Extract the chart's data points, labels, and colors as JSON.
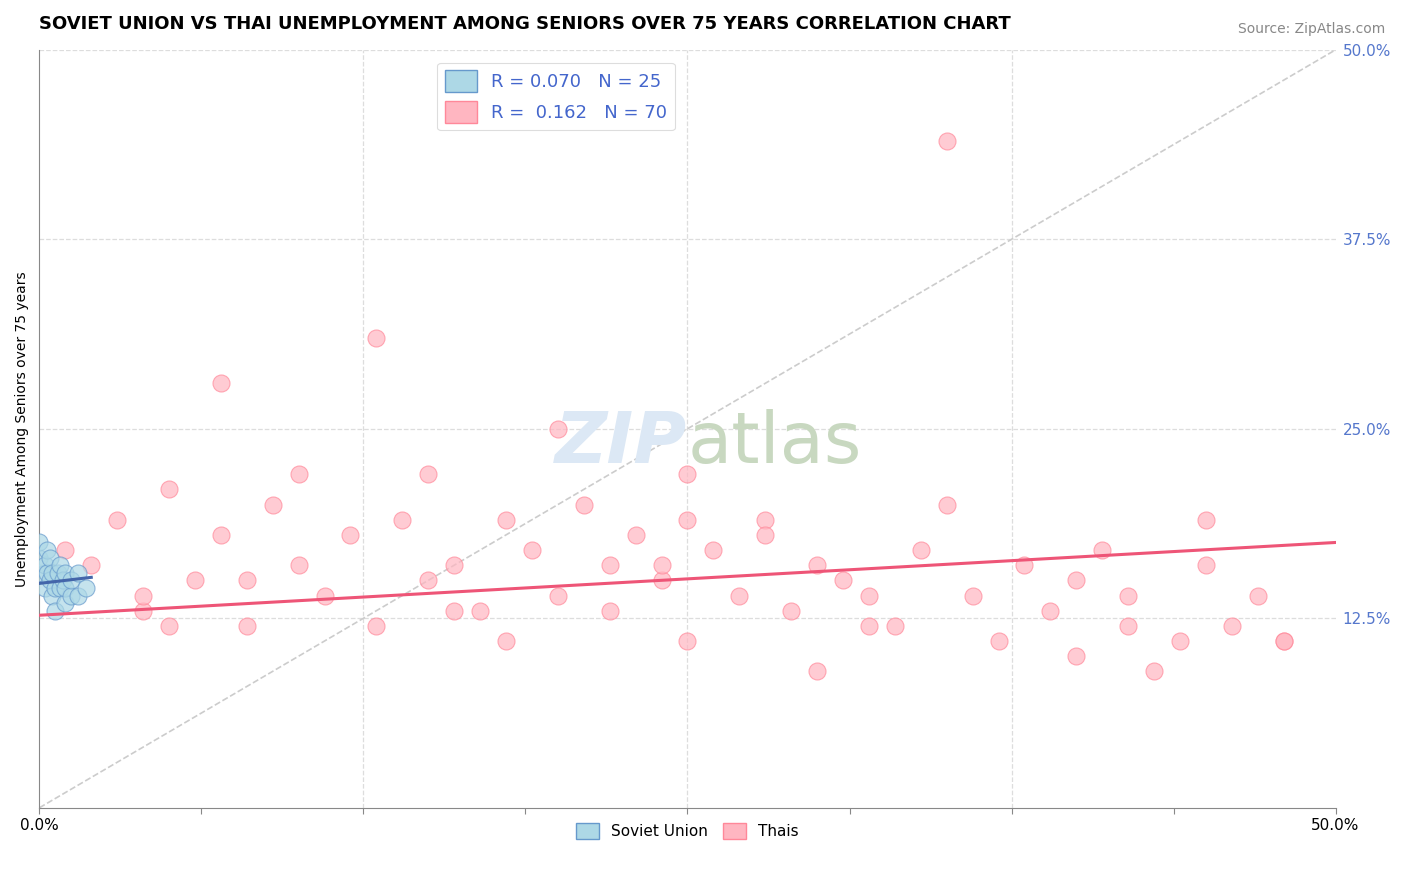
{
  "title": "SOVIET UNION VS THAI UNEMPLOYMENT AMONG SENIORS OVER 75 YEARS CORRELATION CHART",
  "source": "Source: ZipAtlas.com",
  "ylabel": "Unemployment Among Seniors over 75 years",
  "xlim": [
    0.0,
    0.5
  ],
  "ylim": [
    0.0,
    0.5
  ],
  "xticks": [
    0.0,
    0.0625,
    0.125,
    0.1875,
    0.25,
    0.3125,
    0.375,
    0.4375,
    0.5
  ],
  "yticks": [
    0.0,
    0.125,
    0.25,
    0.375,
    0.5
  ],
  "xticklabels_outer": [
    "0.0%",
    "",
    "",
    "",
    "",
    "",
    "",
    "",
    "50.0%"
  ],
  "yticklabels_right": [
    "",
    "12.5%",
    "25.0%",
    "37.5%",
    "50.0%"
  ],
  "background_color": "#ffffff",
  "soviet_R": 0.07,
  "soviet_N": 25,
  "thai_R": 0.162,
  "thai_N": 70,
  "soviet_fill_color": "#add8e6",
  "soviet_edge_color": "#6699cc",
  "thai_fill_color": "#ffb6c1",
  "thai_edge_color": "#ff8899",
  "soviet_line_color": "#4466aa",
  "thai_line_color": "#ee5577",
  "diagonal_color": "#cccccc",
  "grid_color": "#dddddd",
  "right_tick_color": "#5577cc",
  "watermark_color": "#dce8f5",
  "legend_text_color": "#4466cc",
  "soviet_x": [
    0.0,
    0.0,
    0.0,
    0.002,
    0.002,
    0.003,
    0.003,
    0.004,
    0.004,
    0.005,
    0.005,
    0.006,
    0.006,
    0.007,
    0.008,
    0.008,
    0.009,
    0.01,
    0.01,
    0.01,
    0.012,
    0.012,
    0.015,
    0.015,
    0.018
  ],
  "soviet_y": [
    0.155,
    0.165,
    0.175,
    0.145,
    0.16,
    0.155,
    0.17,
    0.15,
    0.165,
    0.14,
    0.155,
    0.13,
    0.145,
    0.155,
    0.145,
    0.16,
    0.15,
    0.135,
    0.145,
    0.155,
    0.14,
    0.15,
    0.14,
    0.155,
    0.145
  ],
  "thai_x": [
    0.01,
    0.02,
    0.03,
    0.04,
    0.04,
    0.05,
    0.06,
    0.07,
    0.08,
    0.09,
    0.1,
    0.1,
    0.11,
    0.12,
    0.13,
    0.14,
    0.15,
    0.15,
    0.16,
    0.17,
    0.18,
    0.18,
    0.19,
    0.2,
    0.21,
    0.22,
    0.22,
    0.23,
    0.24,
    0.25,
    0.25,
    0.26,
    0.27,
    0.28,
    0.29,
    0.3,
    0.31,
    0.32,
    0.33,
    0.34,
    0.35,
    0.36,
    0.37,
    0.38,
    0.39,
    0.4,
    0.41,
    0.42,
    0.43,
    0.44,
    0.45,
    0.46,
    0.47,
    0.48,
    0.07,
    0.13,
    0.2,
    0.28,
    0.35,
    0.42,
    0.08,
    0.16,
    0.24,
    0.32,
    0.4,
    0.48,
    0.05,
    0.25,
    0.45,
    0.3
  ],
  "thai_y": [
    0.17,
    0.16,
    0.19,
    0.13,
    0.14,
    0.21,
    0.15,
    0.18,
    0.12,
    0.2,
    0.16,
    0.22,
    0.14,
    0.18,
    0.12,
    0.19,
    0.15,
    0.22,
    0.16,
    0.13,
    0.19,
    0.11,
    0.17,
    0.14,
    0.2,
    0.16,
    0.13,
    0.18,
    0.15,
    0.22,
    0.11,
    0.17,
    0.14,
    0.19,
    0.13,
    0.16,
    0.15,
    0.14,
    0.12,
    0.17,
    0.44,
    0.14,
    0.11,
    0.16,
    0.13,
    0.15,
    0.17,
    0.12,
    0.09,
    0.11,
    0.16,
    0.12,
    0.14,
    0.11,
    0.28,
    0.31,
    0.25,
    0.18,
    0.2,
    0.14,
    0.15,
    0.13,
    0.16,
    0.12,
    0.1,
    0.11,
    0.12,
    0.19,
    0.19,
    0.09
  ],
  "title_fontsize": 13,
  "axis_label_fontsize": 10,
  "tick_fontsize": 11,
  "legend_fontsize": 13
}
